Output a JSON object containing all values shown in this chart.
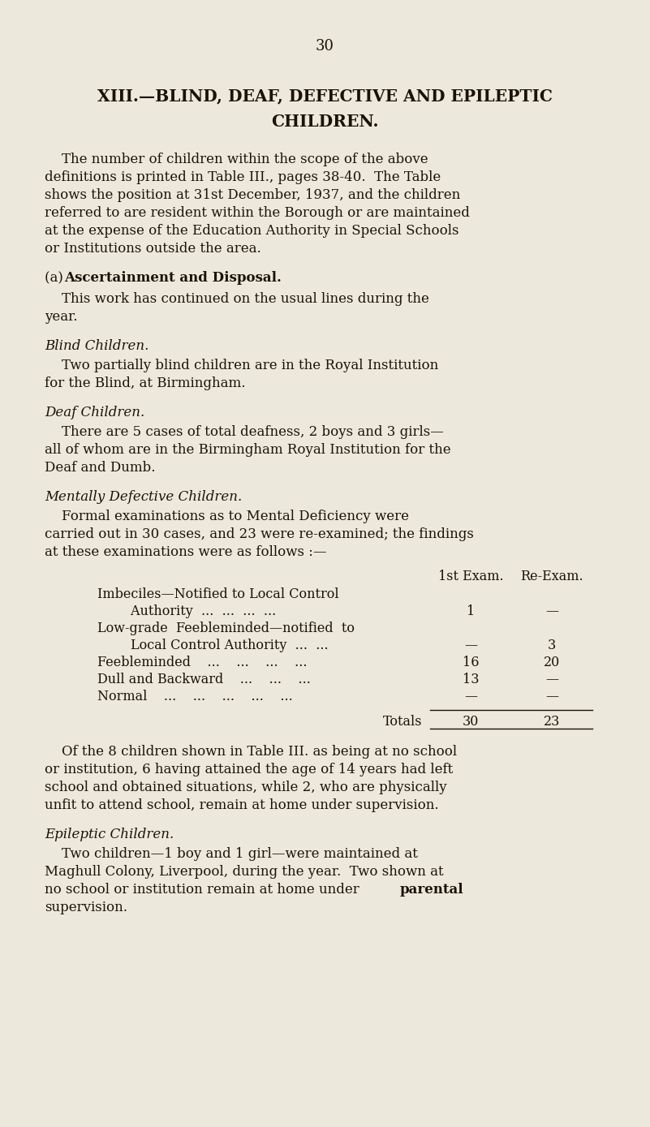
{
  "bg_color": "#ede8dc",
  "text_color": "#1a1208",
  "page_number": "30",
  "title_line1": "XIII.—BLIND, DEAF, DEFECTIVE AND EPILEPTIC",
  "title_line2": "CHILDREN.",
  "para1_lines": [
    "    The number of children within the scope of the above",
    "definitions is printed in Table III., pages 38-40.  The Table",
    "shows the position at 31st December, 1937, and the children",
    "referred to are resident within the Borough or are maintained",
    "at the expense of the Education Authority in Special Schools",
    "or Institutions outside the area."
  ],
  "subheading_a_plain": "(a) ",
  "subheading_a_bold": "Ascertainment and Disposal.",
  "para2_lines": [
    "    This work has continued on the usual lines during the",
    "year."
  ],
  "section_blind": "Blind Children.",
  "para_blind_lines": [
    "    Two partially blind children are in the Royal Institution",
    "for the Blind, at Birmingham."
  ],
  "section_deaf": "Deaf Children.",
  "para_deaf_lines": [
    "    There are 5 cases of total deafness, 2 boys and 3 girls—",
    "all of whom are in the Birmingham Royal Institution for the",
    "Deaf and Dumb."
  ],
  "section_mentally": "Mentally Defective Children.",
  "para_mentally_lines": [
    "    Formal examinations as to Mental Deficiency were",
    "carried out in 30 cases, and 23 were re-examined; the findings",
    "at these examinations were as follows :—"
  ],
  "table_header_label": "1st Exam.",
  "table_header_label2": "Re-Exam.",
  "table_rows": [
    [
      "Imbeciles—Notified to Local Control",
      "",
      ""
    ],
    [
      "        Authority  ...  ...  ...  ...",
      "1",
      "—"
    ],
    [
      "Low-grade  Feebleminded—notified  to",
      "",
      ""
    ],
    [
      "        Local Control Authority  ...  ...",
      "—",
      "3"
    ],
    [
      "Feebleminded    ...    ...    ...    ...",
      "16",
      "20"
    ],
    [
      "Dull and Backward    ...    ...    ...",
      "13",
      "—"
    ],
    [
      "Normal    ...    ...    ...    ...    ...",
      "—",
      "—"
    ]
  ],
  "table_total_label": "Totals",
  "table_total_v1": "30",
  "table_total_v2": "23",
  "para_after_lines": [
    "    Of the 8 children shown in Table III. as being at no school",
    "or institution, 6 having attained the age of 14 years had left",
    "school and obtained situations, while 2, who are physically",
    "unfit to attend school, remain at home under supervision."
  ],
  "section_epileptic": "Epileptic Children.",
  "para_epileptic_lines_1": [
    "    Two children—1 boy and 1 girl—were maintained at",
    "Maghull Colony, Liverpool, during the year.  Two shown at",
    "no school or institution remain at home under "
  ],
  "para_epileptic_bold": "parental",
  "para_epileptic_last": "supervision."
}
